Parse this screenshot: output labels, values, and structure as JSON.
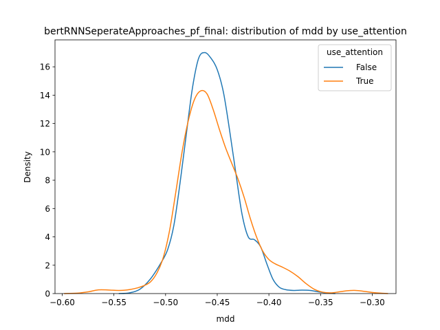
{
  "chart_data": {
    "type": "line",
    "title": "bertRNNSeperateApproaches_pf_final: distribution of mdd by use_attention",
    "xlabel": "mdd",
    "ylabel": "Density",
    "xlim": [
      -0.607,
      -0.277
    ],
    "ylim": [
      0,
      17.9
    ],
    "x_ticks": [
      -0.6,
      -0.55,
      -0.5,
      -0.45,
      -0.4,
      -0.35,
      -0.3
    ],
    "x_tick_labels": [
      "−0.60",
      "−0.55",
      "−0.50",
      "−0.45",
      "−0.40",
      "−0.35",
      "−0.30"
    ],
    "y_ticks": [
      0,
      2,
      4,
      6,
      8,
      10,
      12,
      14,
      16
    ],
    "y_tick_labels": [
      "0",
      "2",
      "4",
      "6",
      "8",
      "10",
      "12",
      "14",
      "16"
    ],
    "grid": false,
    "legend": {
      "title": "use_attention",
      "placement": "top-right",
      "entries": [
        "False",
        "True"
      ]
    },
    "series": [
      {
        "name": "False",
        "color": "#1f77b4",
        "points": [
          [
            -0.545,
            0.0
          ],
          [
            -0.535,
            0.05
          ],
          [
            -0.525,
            0.3
          ],
          [
            -0.515,
            1.0
          ],
          [
            -0.505,
            2.1
          ],
          [
            -0.498,
            3.1
          ],
          [
            -0.492,
            4.8
          ],
          [
            -0.486,
            7.8
          ],
          [
            -0.48,
            11.2
          ],
          [
            -0.474,
            14.5
          ],
          [
            -0.468,
            16.6
          ],
          [
            -0.462,
            17.0
          ],
          [
            -0.456,
            16.6
          ],
          [
            -0.45,
            15.8
          ],
          [
            -0.444,
            14.2
          ],
          [
            -0.438,
            11.5
          ],
          [
            -0.432,
            8.5
          ],
          [
            -0.426,
            5.6
          ],
          [
            -0.42,
            4.0
          ],
          [
            -0.414,
            3.8
          ],
          [
            -0.408,
            3.3
          ],
          [
            -0.402,
            2.1
          ],
          [
            -0.396,
            1.0
          ],
          [
            -0.39,
            0.45
          ],
          [
            -0.384,
            0.28
          ],
          [
            -0.376,
            0.22
          ],
          [
            -0.368,
            0.24
          ],
          [
            -0.36,
            0.22
          ],
          [
            -0.352,
            0.12
          ],
          [
            -0.344,
            0.04
          ],
          [
            -0.336,
            0.0
          ]
        ]
      },
      {
        "name": "True",
        "color": "#ff7f0e",
        "points": [
          [
            -0.598,
            0.0
          ],
          [
            -0.585,
            0.03
          ],
          [
            -0.575,
            0.12
          ],
          [
            -0.565,
            0.26
          ],
          [
            -0.555,
            0.25
          ],
          [
            -0.545,
            0.22
          ],
          [
            -0.535,
            0.28
          ],
          [
            -0.525,
            0.45
          ],
          [
            -0.515,
            0.8
          ],
          [
            -0.508,
            1.5
          ],
          [
            -0.502,
            2.6
          ],
          [
            -0.496,
            4.5
          ],
          [
            -0.49,
            7.2
          ],
          [
            -0.484,
            10.0
          ],
          [
            -0.478,
            12.2
          ],
          [
            -0.472,
            13.7
          ],
          [
            -0.466,
            14.3
          ],
          [
            -0.46,
            14.1
          ],
          [
            -0.454,
            13.0
          ],
          [
            -0.448,
            11.6
          ],
          [
            -0.442,
            10.3
          ],
          [
            -0.436,
            9.2
          ],
          [
            -0.43,
            8.1
          ],
          [
            -0.424,
            6.8
          ],
          [
            -0.418,
            5.3
          ],
          [
            -0.412,
            4.0
          ],
          [
            -0.406,
            3.0
          ],
          [
            -0.4,
            2.4
          ],
          [
            -0.394,
            2.1
          ],
          [
            -0.388,
            1.9
          ],
          [
            -0.38,
            1.6
          ],
          [
            -0.372,
            1.2
          ],
          [
            -0.364,
            0.7
          ],
          [
            -0.356,
            0.3
          ],
          [
            -0.348,
            0.1
          ],
          [
            -0.34,
            0.05
          ],
          [
            -0.332,
            0.12
          ],
          [
            -0.324,
            0.2
          ],
          [
            -0.316,
            0.22
          ],
          [
            -0.308,
            0.16
          ],
          [
            -0.3,
            0.08
          ],
          [
            -0.292,
            0.03
          ],
          [
            -0.285,
            0.0
          ]
        ]
      }
    ]
  }
}
